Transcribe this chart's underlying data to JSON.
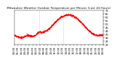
{
  "title": "Milwaukee Weather Outdoor Temperature per Minute (Last 24 Hours)",
  "line_color": "#ff0000",
  "line_width": 0.6,
  "bg_color": "#ffffff",
  "plot_bg_color": "#ffffff",
  "ylim": [
    20,
    70
  ],
  "yticks": [
    20,
    25,
    30,
    35,
    40,
    45,
    50,
    55,
    60,
    65,
    70
  ],
  "vlines": [
    0.28,
    0.55
  ],
  "vline_color": "#888888",
  "title_fontsize": 3.2,
  "tick_fontsize": 2.8,
  "num_points": 1440,
  "random_seed": 42
}
